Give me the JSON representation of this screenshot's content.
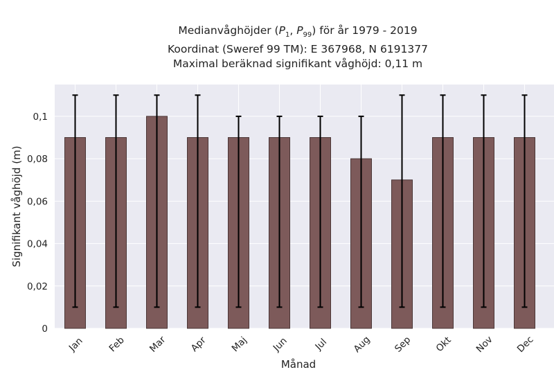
{
  "chart_data": {
    "type": "bar",
    "title_lines": [
      "Medianvåghöjder (P1, P99) för år 1979 - 2019",
      "Koordinat (Sweref 99 TM): E 367968, N 6191377",
      "Maximal beräknad signifikant våghöjd: 0,11 m"
    ],
    "xlabel": "Månad",
    "ylabel": "Signifikant våghöjd (m)",
    "categories": [
      "Jan",
      "Feb",
      "Mar",
      "Apr",
      "Maj",
      "Jun",
      "Jul",
      "Aug",
      "Sep",
      "Okt",
      "Nov",
      "Dec"
    ],
    "values": [
      0.09,
      0.09,
      0.1,
      0.09,
      0.09,
      0.09,
      0.09,
      0.08,
      0.07,
      0.09,
      0.09,
      0.09
    ],
    "error_low": [
      0.01,
      0.01,
      0.01,
      0.01,
      0.01,
      0.01,
      0.01,
      0.01,
      0.01,
      0.01,
      0.01,
      0.01
    ],
    "error_high": [
      0.11,
      0.11,
      0.11,
      0.11,
      0.1,
      0.1,
      0.1,
      0.1,
      0.11,
      0.11,
      0.11,
      0.11
    ],
    "ylim": [
      0,
      0.115
    ],
    "yticks": [
      0,
      0.02,
      0.04,
      0.06,
      0.08,
      0.1
    ],
    "ytick_labels": [
      "0",
      "0,02",
      "0,04",
      "0,06",
      "0,08",
      "0,1"
    ],
    "grid": true,
    "colors": {
      "bar": "#7d5a5a",
      "bar_edge": "#4a3636",
      "error": "#000000",
      "background": "#eaeaf2",
      "grid": "#ffffff"
    }
  }
}
